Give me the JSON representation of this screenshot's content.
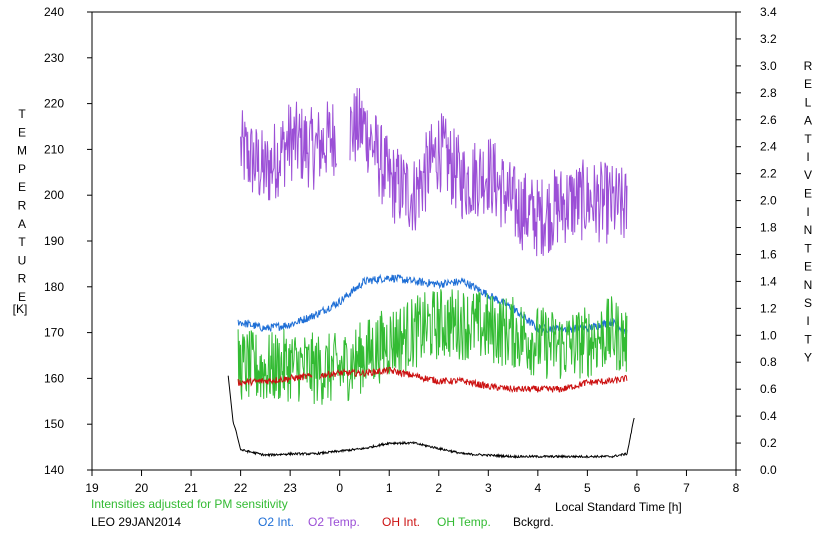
{
  "chart_data": {
    "type": "line",
    "left_axis": {
      "label_letters": [
        "T",
        "E",
        "M",
        "P",
        "E",
        "R",
        "A",
        "T",
        "U",
        "R",
        "E"
      ],
      "unit": "[K]",
      "ylim": [
        140,
        240
      ],
      "ticks": [
        140,
        150,
        160,
        170,
        180,
        190,
        200,
        210,
        220,
        230,
        240
      ]
    },
    "right_axis": {
      "label_letters_1": [
        "R",
        "E",
        "L",
        "A",
        "T",
        "I",
        "V",
        "E"
      ],
      "label_letters_2": [
        "I",
        "N",
        "T",
        "E",
        "N",
        "S",
        "I",
        "T",
        "Y"
      ],
      "ylim": [
        0.0,
        3.4
      ],
      "ticks": [
        "0.0",
        "0.2",
        "0.4",
        "0.6",
        "0.8",
        "1.0",
        "1.2",
        "1.4",
        "1.6",
        "1.8",
        "2.0",
        "2.2",
        "2.4",
        "2.6",
        "2.8",
        "3.0",
        "3.2",
        "3.4"
      ]
    },
    "x_axis": {
      "label": "Local Standard Time [h]",
      "tick_labels": [
        "19",
        "20",
        "21",
        "22",
        "23",
        "0",
        "1",
        "2",
        "3",
        "4",
        "5",
        "6",
        "7",
        "8"
      ],
      "range_hours": [
        19,
        32
      ]
    },
    "note": "Intensities adjusted for PM sensitivity",
    "station_date": "LEO 29JAN2014",
    "legend": [
      {
        "name": "O2 Int.",
        "color": "#1f6fd6"
      },
      {
        "name": "O2 Temp.",
        "color": "#9b4fd6"
      },
      {
        "name": "OH Int.",
        "color": "#cc1111"
      },
      {
        "name": "OH Temp.",
        "color": "#33bb33"
      },
      {
        "name": "Bckgrd.",
        "color": "#000000"
      }
    ],
    "series": [
      {
        "name": "O2 Temp.",
        "color": "#9b4fd6",
        "axis": "left",
        "x": [
          22.0,
          22.5,
          23.0,
          23.5,
          24.0,
          24.5,
          25.0,
          25.5,
          26.0,
          26.5,
          27.0,
          27.5,
          28.0,
          28.5,
          29.0,
          29.5,
          29.8
        ],
        "y": [
          210,
          205,
          212,
          210,
          214,
          215,
          203,
          200,
          210,
          203,
          205,
          198,
          195,
          198,
          199,
          198,
          197
        ]
      },
      {
        "name": "O2 Int.",
        "color": "#1f6fd6",
        "axis": "right",
        "x": [
          21.95,
          22.5,
          23.0,
          23.5,
          24.0,
          24.5,
          25.0,
          25.5,
          26.0,
          26.5,
          27.0,
          27.5,
          28.0,
          28.5,
          29.0,
          29.5,
          29.8
        ],
        "y": [
          1.1,
          1.05,
          1.08,
          1.15,
          1.25,
          1.4,
          1.43,
          1.4,
          1.38,
          1.4,
          1.3,
          1.2,
          1.05,
          1.05,
          1.05,
          1.1,
          1.02
        ]
      },
      {
        "name": "OH Temp.",
        "color": "#33bb33",
        "axis": "left",
        "x": [
          21.95,
          22.5,
          23.0,
          23.5,
          24.0,
          24.5,
          25.0,
          25.5,
          26.0,
          26.5,
          27.0,
          27.5,
          28.0,
          28.5,
          29.0,
          29.5,
          29.8
        ],
        "y": [
          163,
          162,
          163,
          162,
          162,
          165,
          168,
          170,
          172,
          172,
          171,
          170,
          168,
          167,
          168,
          170,
          168
        ]
      },
      {
        "name": "OH Int.",
        "color": "#cc1111",
        "axis": "right",
        "x": [
          21.95,
          22.5,
          23.0,
          23.5,
          24.0,
          24.5,
          25.0,
          25.5,
          26.0,
          26.5,
          27.0,
          27.5,
          28.0,
          28.5,
          29.0,
          29.5,
          29.8
        ],
        "y": [
          0.65,
          0.66,
          0.68,
          0.7,
          0.72,
          0.72,
          0.74,
          0.7,
          0.66,
          0.66,
          0.62,
          0.6,
          0.6,
          0.6,
          0.65,
          0.66,
          0.68
        ]
      },
      {
        "name": "Bckgrd.",
        "color": "#000000",
        "axis": "right",
        "x": [
          21.75,
          21.85,
          21.9,
          22.0,
          22.5,
          23.0,
          23.5,
          24.0,
          24.5,
          25.0,
          25.5,
          26.0,
          26.5,
          27.0,
          27.5,
          28.0,
          28.5,
          29.0,
          29.5,
          29.8,
          29.95
        ],
        "y": [
          0.7,
          0.35,
          0.3,
          0.15,
          0.11,
          0.12,
          0.12,
          0.14,
          0.16,
          0.2,
          0.2,
          0.16,
          0.12,
          0.11,
          0.1,
          0.1,
          0.1,
          0.1,
          0.1,
          0.12,
          0.4
        ]
      }
    ]
  }
}
